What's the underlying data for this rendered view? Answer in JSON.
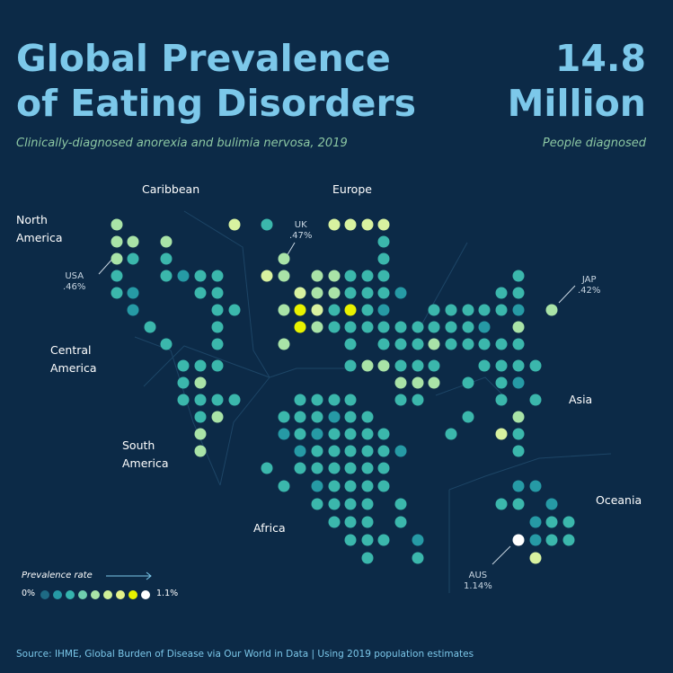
{
  "title": "Global Prevalence\nof Eating Disorders",
  "subtitle": "Clinically-diagnosed anorexia and bulimia nervosa, 2019",
  "headline_value": "14.8\nMillion",
  "headline_label": "People diagnosed",
  "regions": {
    "north_america": "North\nAmerica",
    "caribbean": "Caribbean",
    "europe": "Europe",
    "central_america": "Central\nAmerica",
    "south_america": "South\nAmerica",
    "africa": "Africa",
    "asia": "Asia",
    "oceania": "Oceania"
  },
  "callouts": {
    "usa": "USA\n.46%",
    "uk": "UK\n.47%",
    "jap": "JAP\n.42%",
    "aus": "AUS\n1.14%"
  },
  "legend": {
    "title": "Prevalence rate",
    "min": "0%",
    "max": "1.1%",
    "colors": [
      "#1e6a84",
      "#269aa5",
      "#35b4ae",
      "#6fcfae",
      "#a9e3a7",
      "#cfef98",
      "#e4f28a",
      "#e8f200",
      "#ffffff"
    ]
  },
  "source": "Source: IHME, Global Burden of Disease via Our World in Data  |  Using 2019 population estimates",
  "colors": {
    "background": "#0c2a47",
    "title": "#7cc8ea",
    "subtitle": "#8cc7a3",
    "c1": "#1e6a84",
    "c2": "#269aa5",
    "c3": "#3bb7ac",
    "c4": "#a9e3a7",
    "c5": "#d8f2a0",
    "c6": "#e8f200",
    "c7": "#ffffff"
  },
  "map_dots": [
    [
      130,
      250,
      4
    ],
    [
      261,
      250,
      5
    ],
    [
      297,
      250,
      3
    ],
    [
      372,
      250,
      5
    ],
    [
      390,
      250,
      5
    ],
    [
      409,
      250,
      5
    ],
    [
      427,
      250,
      5
    ],
    [
      130,
      269,
      4
    ],
    [
      148,
      269,
      4
    ],
    [
      185,
      269,
      4
    ],
    [
      427,
      269,
      3
    ],
    [
      130,
      288,
      4
    ],
    [
      148,
      288,
      3
    ],
    [
      185,
      288,
      3
    ],
    [
      316,
      288,
      4
    ],
    [
      427,
      288,
      3
    ],
    [
      130,
      307,
      3
    ],
    [
      185,
      307,
      3
    ],
    [
      204,
      307,
      2
    ],
    [
      223,
      307,
      3
    ],
    [
      242,
      307,
      3
    ],
    [
      297,
      307,
      5
    ],
    [
      316,
      307,
      4
    ],
    [
      353,
      307,
      4
    ],
    [
      372,
      307,
      4
    ],
    [
      390,
      307,
      3
    ],
    [
      409,
      307,
      3
    ],
    [
      427,
      307,
      3
    ],
    [
      577,
      307,
      3
    ],
    [
      130,
      326,
      3
    ],
    [
      148,
      326,
      2
    ],
    [
      223,
      326,
      3
    ],
    [
      242,
      326,
      3
    ],
    [
      334,
      326,
      5
    ],
    [
      353,
      326,
      4
    ],
    [
      372,
      326,
      4
    ],
    [
      390,
      326,
      3
    ],
    [
      409,
      326,
      3
    ],
    [
      427,
      326,
      3
    ],
    [
      446,
      326,
      2
    ],
    [
      558,
      326,
      3
    ],
    [
      577,
      326,
      3
    ],
    [
      148,
      345,
      2
    ],
    [
      242,
      345,
      3
    ],
    [
      261,
      345,
      3
    ],
    [
      316,
      345,
      4
    ],
    [
      334,
      345,
      6
    ],
    [
      353,
      345,
      5
    ],
    [
      372,
      345,
      3
    ],
    [
      390,
      345,
      6
    ],
    [
      409,
      345,
      3
    ],
    [
      427,
      345,
      2
    ],
    [
      483,
      345,
      3
    ],
    [
      502,
      345,
      3
    ],
    [
      521,
      345,
      3
    ],
    [
      539,
      345,
      3
    ],
    [
      558,
      345,
      3
    ],
    [
      577,
      345,
      2
    ],
    [
      614,
      345,
      4
    ],
    [
      167,
      364,
      3
    ],
    [
      242,
      364,
      3
    ],
    [
      334,
      364,
      6
    ],
    [
      353,
      364,
      4
    ],
    [
      372,
      364,
      3
    ],
    [
      390,
      364,
      3
    ],
    [
      409,
      364,
      3
    ],
    [
      427,
      364,
      3
    ],
    [
      446,
      364,
      3
    ],
    [
      465,
      364,
      3
    ],
    [
      483,
      364,
      3
    ],
    [
      502,
      364,
      3
    ],
    [
      521,
      364,
      3
    ],
    [
      539,
      364,
      2
    ],
    [
      577,
      364,
      4
    ],
    [
      185,
      383,
      3
    ],
    [
      242,
      383,
      3
    ],
    [
      316,
      383,
      4
    ],
    [
      390,
      383,
      3
    ],
    [
      427,
      383,
      3
    ],
    [
      446,
      383,
      3
    ],
    [
      465,
      383,
      3
    ],
    [
      483,
      383,
      4
    ],
    [
      502,
      383,
      3
    ],
    [
      521,
      383,
      3
    ],
    [
      539,
      383,
      3
    ],
    [
      558,
      383,
      3
    ],
    [
      577,
      383,
      3
    ],
    [
      204,
      407,
      3
    ],
    [
      223,
      407,
      3
    ],
    [
      242,
      407,
      3
    ],
    [
      390,
      407,
      3
    ],
    [
      409,
      407,
      4
    ],
    [
      427,
      407,
      4
    ],
    [
      446,
      407,
      3
    ],
    [
      465,
      407,
      3
    ],
    [
      483,
      407,
      3
    ],
    [
      539,
      407,
      3
    ],
    [
      558,
      407,
      3
    ],
    [
      577,
      407,
      3
    ],
    [
      596,
      407,
      3
    ],
    [
      204,
      426,
      3
    ],
    [
      223,
      426,
      4
    ],
    [
      446,
      426,
      4
    ],
    [
      465,
      426,
      4
    ],
    [
      483,
      426,
      4
    ],
    [
      521,
      426,
      3
    ],
    [
      558,
      426,
      3
    ],
    [
      577,
      426,
      2
    ],
    [
      204,
      445,
      3
    ],
    [
      223,
      445,
      3
    ],
    [
      242,
      445,
      3
    ],
    [
      261,
      445,
      3
    ],
    [
      334,
      445,
      3
    ],
    [
      353,
      445,
      3
    ],
    [
      372,
      445,
      3
    ],
    [
      390,
      445,
      3
    ],
    [
      446,
      445,
      3
    ],
    [
      465,
      445,
      3
    ],
    [
      558,
      445,
      3
    ],
    [
      596,
      445,
      3
    ],
    [
      223,
      464,
      3
    ],
    [
      242,
      464,
      4
    ],
    [
      316,
      464,
      3
    ],
    [
      334,
      464,
      3
    ],
    [
      353,
      464,
      3
    ],
    [
      372,
      464,
      2
    ],
    [
      390,
      464,
      3
    ],
    [
      409,
      464,
      3
    ],
    [
      521,
      464,
      3
    ],
    [
      577,
      464,
      4
    ],
    [
      223,
      483,
      4
    ],
    [
      316,
      483,
      2
    ],
    [
      334,
      483,
      3
    ],
    [
      353,
      483,
      2
    ],
    [
      372,
      483,
      3
    ],
    [
      390,
      483,
      3
    ],
    [
      409,
      483,
      3
    ],
    [
      427,
      483,
      3
    ],
    [
      502,
      483,
      3
    ],
    [
      558,
      483,
      5
    ],
    [
      577,
      483,
      3
    ],
    [
      223,
      502,
      4
    ],
    [
      334,
      502,
      2
    ],
    [
      353,
      502,
      3
    ],
    [
      372,
      502,
      3
    ],
    [
      390,
      502,
      3
    ],
    [
      409,
      502,
      3
    ],
    [
      427,
      502,
      3
    ],
    [
      446,
      502,
      2
    ],
    [
      577,
      502,
      3
    ],
    [
      297,
      521,
      3
    ],
    [
      334,
      521,
      3
    ],
    [
      353,
      521,
      3
    ],
    [
      372,
      521,
      3
    ],
    [
      390,
      521,
      3
    ],
    [
      409,
      521,
      3
    ],
    [
      427,
      521,
      3
    ],
    [
      316,
      541,
      3
    ],
    [
      353,
      541,
      2
    ],
    [
      372,
      541,
      3
    ],
    [
      390,
      541,
      3
    ],
    [
      409,
      541,
      3
    ],
    [
      427,
      541,
      3
    ],
    [
      577,
      541,
      2
    ],
    [
      596,
      541,
      2
    ],
    [
      353,
      561,
      3
    ],
    [
      372,
      561,
      3
    ],
    [
      390,
      561,
      3
    ],
    [
      409,
      561,
      3
    ],
    [
      446,
      561,
      3
    ],
    [
      558,
      561,
      3
    ],
    [
      577,
      561,
      3
    ],
    [
      614,
      561,
      2
    ],
    [
      372,
      581,
      3
    ],
    [
      390,
      581,
      3
    ],
    [
      409,
      581,
      3
    ],
    [
      446,
      581,
      3
    ],
    [
      596,
      581,
      2
    ],
    [
      614,
      581,
      3
    ],
    [
      633,
      581,
      3
    ],
    [
      390,
      601,
      3
    ],
    [
      409,
      601,
      3
    ],
    [
      427,
      601,
      3
    ],
    [
      465,
      601,
      2
    ],
    [
      577,
      601,
      7
    ],
    [
      596,
      601,
      2
    ],
    [
      614,
      601,
      3
    ],
    [
      633,
      601,
      3
    ],
    [
      409,
      621,
      3
    ],
    [
      465,
      621,
      3
    ],
    [
      596,
      621,
      5
    ]
  ]
}
